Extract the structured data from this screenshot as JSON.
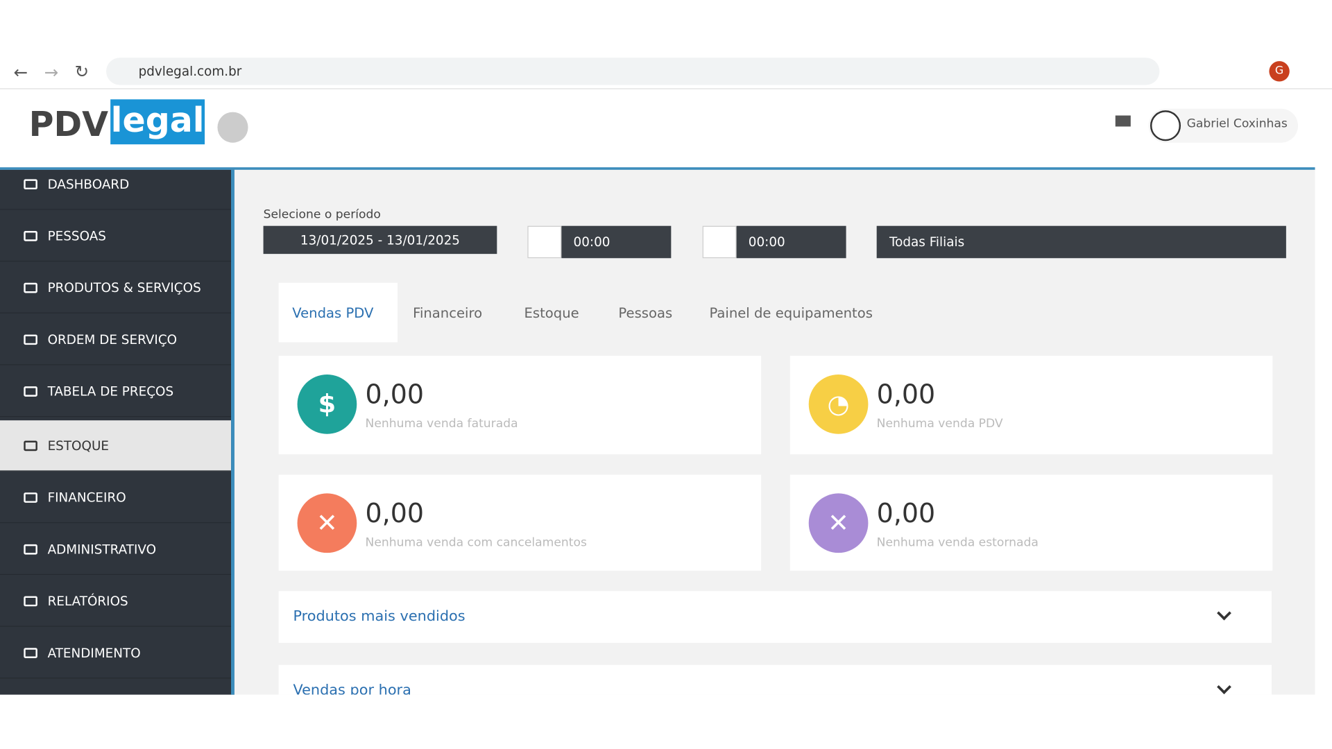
{
  "browser": {
    "url": "pdvlegal.com.br",
    "profile_initial": "G"
  },
  "header": {
    "logo_left": "PDV",
    "logo_right": "legal",
    "user_name": "Gabriel Coxinhas"
  },
  "sidebar": {
    "items": [
      "DASHBOARD",
      "PESSOAS",
      "PRODUTOS & SERVIÇOS",
      "ORDEM DE SERVIÇO",
      "TABELA DE PREÇOS",
      "ESTOQUE",
      "FINANCEIRO",
      "ADMINISTRATIVO",
      "RELATÓRIOS",
      "ATENDIMENTO"
    ],
    "active": 5
  },
  "filters": {
    "period_label": "Selecione o período",
    "date_range": "13/01/2025 - 13/01/2025",
    "time_start": "00:00",
    "time_end": "00:00",
    "branch": "Todas Filiais"
  },
  "tabs": {
    "items": [
      "Vendas PDV",
      "Financeiro",
      "Estoque",
      "Pessoas",
      "Painel de equipamentos"
    ],
    "active": 0
  },
  "cards": [
    {
      "value": "0,00",
      "caption": "Nenhuma venda faturada",
      "color": "#1fa39a"
    },
    {
      "value": "0,00",
      "caption": "Nenhuma venda PDV",
      "color": "#f7cf45"
    },
    {
      "value": "0,00",
      "caption": "Nenhuma venda com cancelamentos",
      "color": "#f47c5d"
    },
    {
      "value": "0,00",
      "caption": "Nenhuma venda estornada",
      "color": "#a98cd6"
    }
  ],
  "panels": [
    "Produtos mais vendidos",
    "Vendas por hora"
  ]
}
